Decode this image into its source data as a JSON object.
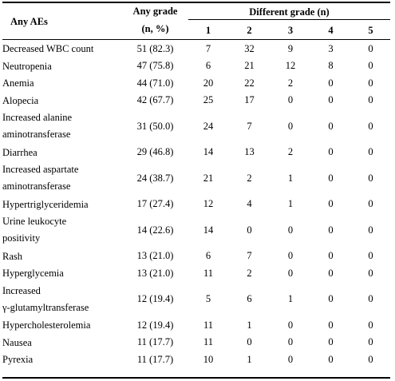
{
  "header": {
    "ae": "Any AEs",
    "any_grade": "Any grade",
    "any_grade_unit": "(n, %)",
    "different_grade": "Different grade (n)",
    "grades": [
      "1",
      "2",
      "3",
      "4",
      "5"
    ]
  },
  "rows": [
    {
      "ae": [
        "Decreased WBC count"
      ],
      "any": "51 (82.3)",
      "g": [
        "7",
        "32",
        "9",
        "3",
        "0"
      ]
    },
    {
      "ae": [
        "Neutropenia"
      ],
      "any": "47 (75.8)",
      "g": [
        "6",
        "21",
        "12",
        "8",
        "0"
      ]
    },
    {
      "ae": [
        "Anemia"
      ],
      "any": "44 (71.0)",
      "g": [
        "20",
        "22",
        "2",
        "0",
        "0"
      ]
    },
    {
      "ae": [
        "Alopecia"
      ],
      "any": "42 (67.7)",
      "g": [
        "25",
        "17",
        "0",
        "0",
        "0"
      ]
    },
    {
      "ae": [
        "Increased alanine",
        "aminotransferase"
      ],
      "any": "31 (50.0)",
      "g": [
        "24",
        "7",
        "0",
        "0",
        "0"
      ]
    },
    {
      "ae": [
        "Diarrhea"
      ],
      "any": "29 (46.8)",
      "g": [
        "14",
        "13",
        "2",
        "0",
        "0"
      ]
    },
    {
      "ae": [
        "Increased aspartate",
        "aminotransferase"
      ],
      "any": "24 (38.7)",
      "g": [
        "21",
        "2",
        "1",
        "0",
        "0"
      ]
    },
    {
      "ae": [
        "Hypertriglyceridemia"
      ],
      "any": "17 (27.4)",
      "g": [
        "12",
        "4",
        "1",
        "0",
        "0"
      ]
    },
    {
      "ae": [
        "Urine leukocyte",
        "positivity"
      ],
      "any": "14 (22.6)",
      "g": [
        "14",
        "0",
        "0",
        "0",
        "0"
      ]
    },
    {
      "ae": [
        "Rash"
      ],
      "any": "13 (21.0)",
      "g": [
        "6",
        "7",
        "0",
        "0",
        "0"
      ]
    },
    {
      "ae": [
        "Hyperglycemia"
      ],
      "any": "13 (21.0)",
      "g": [
        "11",
        "2",
        "0",
        "0",
        "0"
      ]
    },
    {
      "ae": [
        "Increased",
        "γ-glutamyltransferase"
      ],
      "any": "12 (19.4)",
      "g": [
        "5",
        "6",
        "1",
        "0",
        "0"
      ]
    },
    {
      "ae": [
        "Hypercholesterolemia"
      ],
      "any": "12 (19.4)",
      "g": [
        "11",
        "1",
        "0",
        "0",
        "0"
      ]
    },
    {
      "ae": [
        "Nausea"
      ],
      "any": "11 (17.7)",
      "g": [
        "11",
        "0",
        "0",
        "0",
        "0"
      ]
    },
    {
      "ae": [
        "Pyrexia"
      ],
      "any": "11 (17.7)",
      "g": [
        "10",
        "1",
        "0",
        "0",
        "0"
      ]
    }
  ]
}
